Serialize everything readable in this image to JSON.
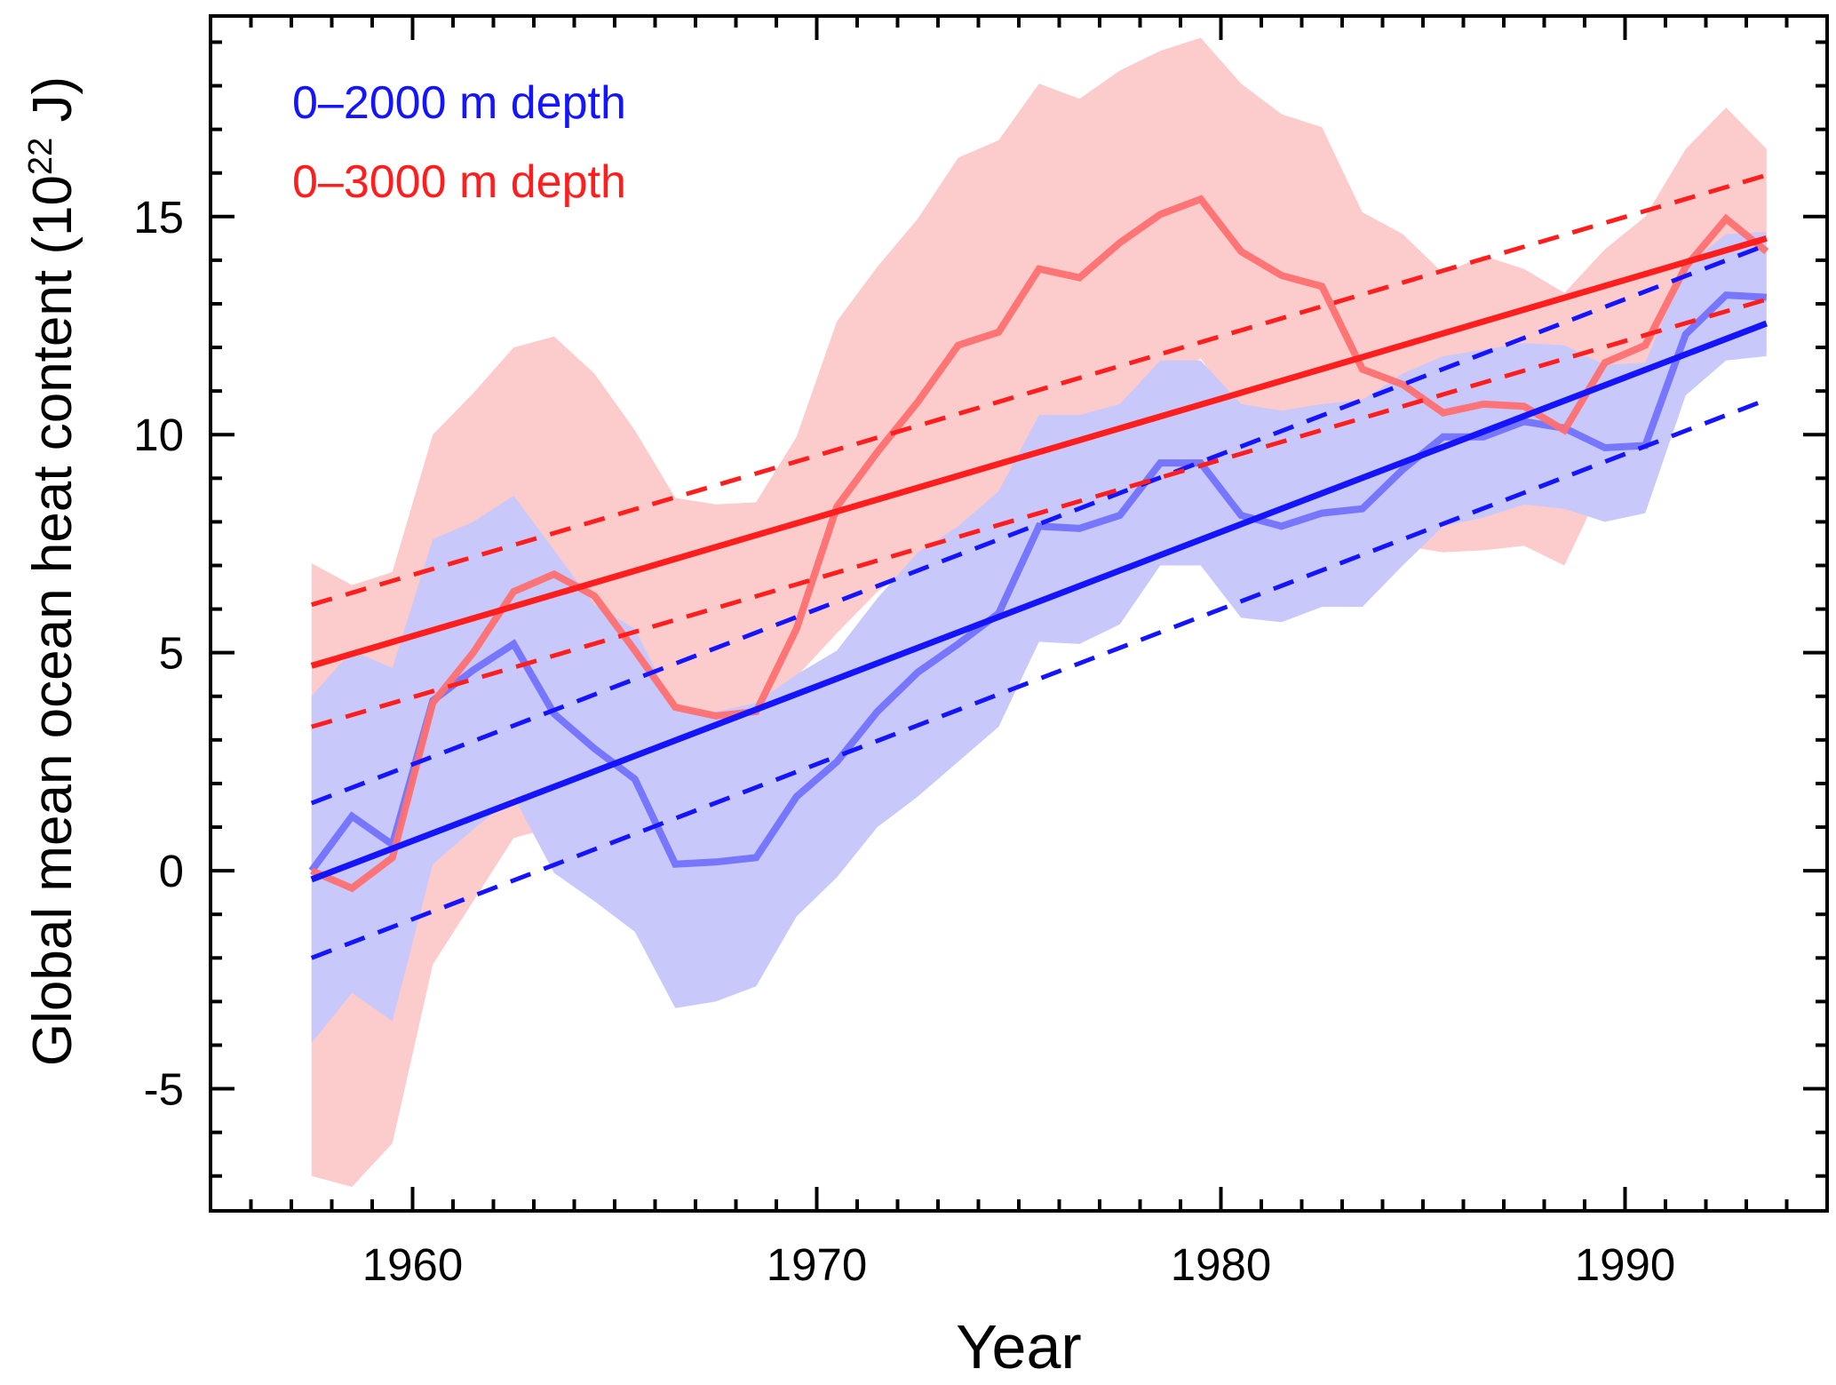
{
  "chart_data": {
    "type": "line",
    "title": "",
    "xlabel": "Year",
    "ylabel": "Global mean ocean heat content  (10",
    "ylabel_superscript": "22",
    "ylabel_suffix": " J)",
    "xlim": [
      1955,
      1995
    ],
    "ylim": [
      -7.8,
      19.6
    ],
    "grid": false,
    "x_ticks": [
      1960,
      1970,
      1980,
      1990
    ],
    "x_tick_labels": [
      "1960",
      "1970",
      "1980",
      "1990"
    ],
    "x_minor_step": 1,
    "y_ticks": [
      -5,
      0,
      5,
      10,
      15
    ],
    "y_tick_labels": [
      "-5",
      "0",
      "5",
      "10",
      "15"
    ],
    "y_minor_step": 1,
    "legend_position": "top-left",
    "x": [
      1957.5,
      1958.5,
      1959.5,
      1960.5,
      1961.5,
      1962.5,
      1963.5,
      1964.5,
      1965.5,
      1966.5,
      1967.5,
      1968.5,
      1969.5,
      1970.5,
      1971.5,
      1972.5,
      1973.5,
      1974.5,
      1975.5,
      1976.5,
      1977.5,
      1978.5,
      1979.5,
      1980.5,
      1981.5,
      1982.5,
      1983.5,
      1984.5,
      1985.5,
      1986.5,
      1987.5,
      1988.5,
      1989.5,
      1990.5,
      1991.5,
      1992.5,
      1993.5
    ],
    "series": [
      {
        "name": "0–2000 m depth",
        "color": "#1414ff",
        "line_color": "#7272ff",
        "band_color": "#c8c8fa",
        "values": [
          0.0,
          1.25,
          0.6,
          3.9,
          4.6,
          5.2,
          3.6,
          2.8,
          2.1,
          0.15,
          0.2,
          0.3,
          1.7,
          2.5,
          3.65,
          4.55,
          5.2,
          5.9,
          7.9,
          7.85,
          8.15,
          9.35,
          9.35,
          8.15,
          7.9,
          8.2,
          8.3,
          9.2,
          9.95,
          9.95,
          10.3,
          10.15,
          9.7,
          9.75,
          12.3,
          13.2,
          13.15
        ],
        "upper": [
          4.0,
          5.05,
          4.65,
          7.6,
          8.0,
          8.6,
          7.35,
          6.1,
          5.55,
          3.7,
          3.65,
          3.85,
          4.5,
          5.05,
          6.25,
          7.3,
          7.9,
          8.7,
          10.45,
          10.45,
          10.7,
          11.7,
          11.7,
          10.7,
          10.55,
          10.7,
          10.8,
          11.4,
          11.8,
          11.95,
          12.1,
          12.05,
          11.6,
          11.65,
          13.85,
          14.6,
          14.65
        ],
        "lower": [
          -3.95,
          -2.8,
          -3.45,
          0.15,
          0.95,
          1.7,
          -0.05,
          -0.7,
          -1.4,
          -3.15,
          -3.0,
          -2.65,
          -1.05,
          -0.15,
          1.0,
          1.7,
          2.5,
          3.3,
          5.25,
          5.2,
          5.65,
          7.0,
          7.0,
          5.8,
          5.7,
          6.05,
          6.05,
          7.0,
          7.9,
          8.1,
          8.4,
          8.3,
          8.0,
          8.2,
          10.9,
          11.7,
          11.8
        ],
        "trend": {
          "x": [
            1957.5,
            1993.5
          ],
          "y": [
            -0.2,
            12.55
          ]
        },
        "trend_upper": {
          "x": [
            1957.5,
            1993.5
          ],
          "y": [
            1.55,
            14.35
          ]
        },
        "trend_lower": {
          "x": [
            1957.5,
            1993.5
          ],
          "y": [
            -2.0,
            10.8
          ]
        }
      },
      {
        "name": "0–3000 m depth",
        "color": "#ff1e1e",
        "line_color": "#ff7070",
        "band_color": "#fccbcb",
        "values": [
          0.0,
          -0.4,
          0.3,
          3.85,
          5.0,
          6.4,
          6.8,
          6.3,
          5.05,
          3.75,
          3.55,
          3.65,
          5.55,
          8.35,
          9.6,
          10.75,
          12.05,
          12.35,
          13.8,
          13.6,
          14.4,
          15.05,
          15.4,
          14.2,
          13.65,
          13.4,
          11.5,
          11.15,
          10.5,
          10.7,
          10.65,
          10.1,
          11.65,
          12.05,
          13.85,
          14.95,
          14.2
        ],
        "upper": [
          7.05,
          6.55,
          6.85,
          10.0,
          10.95,
          12.0,
          12.25,
          11.4,
          10.1,
          8.55,
          8.4,
          8.45,
          9.95,
          12.6,
          13.85,
          14.95,
          16.35,
          16.75,
          18.05,
          17.7,
          18.35,
          18.8,
          19.1,
          18.05,
          17.35,
          17.05,
          15.1,
          14.6,
          13.7,
          14.1,
          13.8,
          13.25,
          14.25,
          15.0,
          16.55,
          17.5,
          16.55
        ],
        "lower": [
          -7.0,
          -7.25,
          -6.25,
          -2.15,
          -0.7,
          0.75,
          1.0,
          1.45,
          2.25,
          3.45,
          3.5,
          3.25,
          4.45,
          5.45,
          6.4,
          7.05,
          7.75,
          8.3,
          9.4,
          9.35,
          10.0,
          11.1,
          11.75,
          10.45,
          9.9,
          9.6,
          8.05,
          7.45,
          7.3,
          7.35,
          7.45,
          7.0,
          8.95,
          9.35,
          11.05,
          12.1,
          11.9
        ],
        "trend": {
          "x": [
            1957.5,
            1993.5
          ],
          "y": [
            4.7,
            14.5
          ]
        },
        "trend_upper": {
          "x": [
            1957.5,
            1993.5
          ],
          "y": [
            6.1,
            15.95
          ]
        },
        "trend_lower": {
          "x": [
            1957.5,
            1993.5
          ],
          "y": [
            3.3,
            13.1
          ]
        }
      }
    ]
  }
}
